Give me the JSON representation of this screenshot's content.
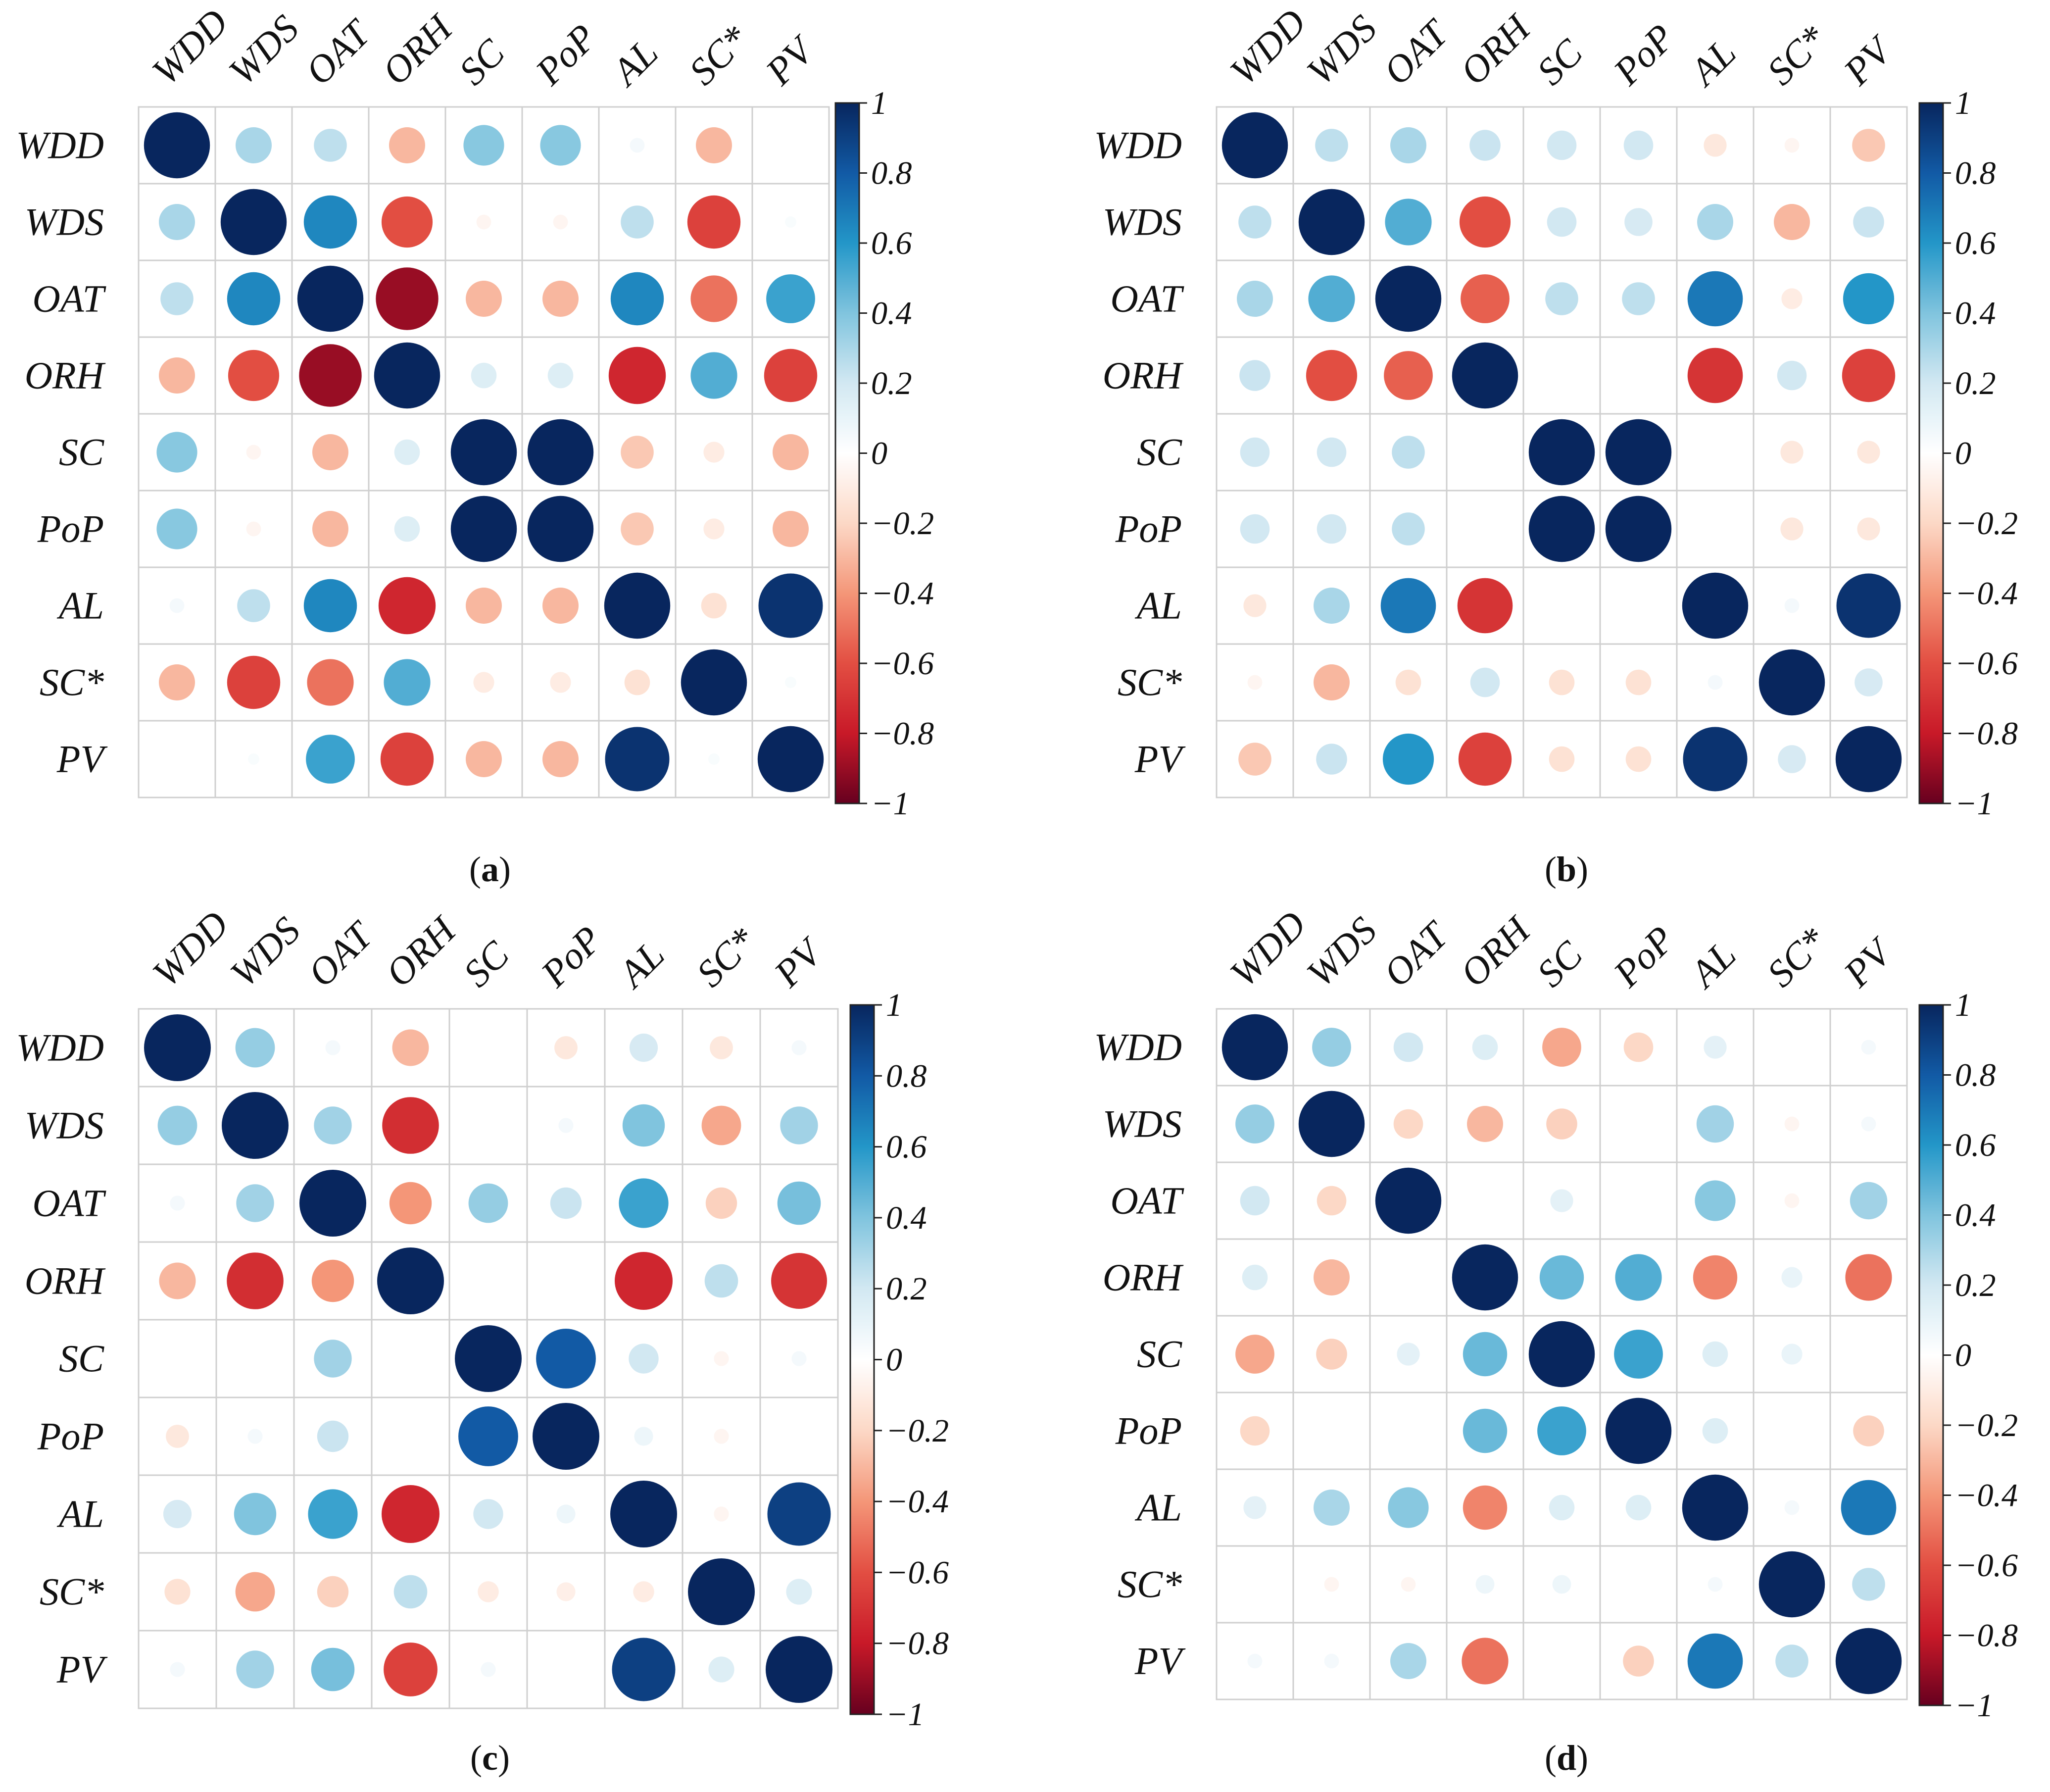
{
  "chart_data": [
    {
      "type": "heatmap",
      "subtype": "circle-correlogram",
      "caption": "(a)",
      "caption_letter": "a",
      "variables": [
        "WDD",
        "WDS",
        "OAT",
        "ORH",
        "SC",
        "PoP",
        "AL",
        "SC*",
        "PV"
      ],
      "colorbar": {
        "min": -1,
        "max": 1,
        "ticks": [
          "1",
          "0.8",
          "0.6",
          "0.4",
          "0.2",
          "0",
          "−0.2",
          "−0.4",
          "−0.6",
          "−0.8",
          "−1"
        ]
      },
      "matrix": [
        [
          1.0,
          0.3,
          0.25,
          -0.3,
          0.38,
          0.38,
          0.05,
          -0.3,
          0.0
        ],
        [
          0.3,
          1.0,
          0.65,
          -0.6,
          -0.05,
          -0.05,
          0.25,
          -0.65,
          0.03
        ],
        [
          0.25,
          0.65,
          1.0,
          -0.9,
          -0.3,
          -0.3,
          0.65,
          -0.5,
          0.55
        ],
        [
          -0.3,
          -0.6,
          -0.9,
          1.0,
          0.15,
          0.15,
          -0.75,
          0.5,
          -0.65
        ],
        [
          0.38,
          -0.05,
          -0.3,
          0.15,
          1.0,
          1.0,
          -0.25,
          -0.1,
          -0.3
        ],
        [
          0.38,
          -0.05,
          -0.3,
          0.15,
          1.0,
          1.0,
          -0.25,
          -0.1,
          -0.3
        ],
        [
          0.05,
          0.25,
          0.65,
          -0.75,
          -0.3,
          -0.3,
          1.0,
          -0.15,
          0.95
        ],
        [
          -0.3,
          -0.65,
          -0.5,
          0.5,
          -0.1,
          -0.1,
          -0.15,
          1.0,
          0.03
        ],
        [
          0.0,
          0.03,
          0.55,
          -0.65,
          -0.3,
          -0.3,
          0.95,
          0.03,
          1.0
        ]
      ]
    },
    {
      "type": "heatmap",
      "subtype": "circle-correlogram",
      "caption": "(b)",
      "caption_letter": "b",
      "variables": [
        "WDD",
        "WDS",
        "OAT",
        "ORH",
        "SC",
        "PoP",
        "AL",
        "SC*",
        "PV"
      ],
      "colorbar": {
        "min": -1,
        "max": 1,
        "ticks": [
          "1",
          "0.8",
          "0.6",
          "0.4",
          "0.2",
          "0",
          "−0.2",
          "−0.4",
          "−0.6",
          "−0.8",
          "−1"
        ]
      },
      "matrix": [
        [
          1.0,
          0.25,
          0.3,
          0.22,
          0.2,
          0.2,
          -0.12,
          -0.05,
          -0.25
        ],
        [
          0.25,
          1.0,
          0.5,
          -0.6,
          0.2,
          0.18,
          0.3,
          -0.3,
          0.22
        ],
        [
          0.3,
          0.5,
          1.0,
          -0.55,
          0.25,
          0.25,
          0.7,
          -0.1,
          0.6
        ],
        [
          0.22,
          -0.6,
          -0.55,
          1.0,
          0.0,
          0.0,
          -0.7,
          0.2,
          -0.65
        ],
        [
          0.2,
          0.2,
          0.25,
          0.0,
          1.0,
          1.0,
          0.0,
          -0.12,
          -0.12
        ],
        [
          0.2,
          0.2,
          0.25,
          0.0,
          1.0,
          1.0,
          0.0,
          -0.12,
          -0.12
        ],
        [
          -0.12,
          0.3,
          0.7,
          -0.7,
          0.0,
          0.0,
          1.0,
          0.05,
          0.95
        ],
        [
          -0.05,
          -0.3,
          -0.15,
          0.2,
          -0.15,
          -0.15,
          0.05,
          1.0,
          0.18
        ],
        [
          -0.25,
          0.22,
          0.6,
          -0.65,
          -0.15,
          -0.15,
          0.95,
          0.18,
          1.0
        ]
      ]
    },
    {
      "type": "heatmap",
      "subtype": "circle-correlogram",
      "caption": "(c)",
      "caption_letter": "c",
      "variables": [
        "WDD",
        "WDS",
        "OAT",
        "ORH",
        "SC",
        "PoP",
        "AL",
        "SC*",
        "PV"
      ],
      "colorbar": {
        "min": -1,
        "max": 1,
        "ticks": [
          "1",
          "0.8",
          "0.6",
          "0.4",
          "0.2",
          "0",
          "−0.2",
          "−0.4",
          "−0.6",
          "−0.8",
          "−1"
        ]
      },
      "matrix": [
        [
          1.0,
          0.35,
          0.05,
          -0.3,
          0.0,
          -0.12,
          0.18,
          -0.12,
          0.05
        ],
        [
          0.35,
          1.0,
          0.32,
          -0.72,
          0.0,
          0.05,
          0.4,
          -0.35,
          0.32
        ],
        [
          0.05,
          0.32,
          1.0,
          -0.4,
          0.35,
          0.22,
          0.55,
          -0.22,
          0.42
        ],
        [
          -0.3,
          -0.72,
          -0.4,
          1.0,
          0.0,
          0.0,
          -0.75,
          0.25,
          -0.7
        ],
        [
          0.0,
          0.0,
          0.32,
          0.0,
          1.0,
          0.8,
          0.2,
          -0.05,
          0.05
        ],
        [
          -0.12,
          0.05,
          0.22,
          0.0,
          0.8,
          1.0,
          0.08,
          -0.05,
          0.0
        ],
        [
          0.18,
          0.4,
          0.55,
          -0.75,
          0.2,
          0.08,
          1.0,
          -0.05,
          0.9
        ],
        [
          -0.15,
          -0.35,
          -0.22,
          0.25,
          -0.1,
          -0.08,
          -0.1,
          1.0,
          0.15
        ],
        [
          0.05,
          0.32,
          0.42,
          -0.65,
          0.05,
          0.0,
          0.9,
          0.15,
          1.0
        ]
      ]
    },
    {
      "type": "heatmap",
      "subtype": "circle-correlogram",
      "caption": "(d)",
      "caption_letter": "d",
      "variables": [
        "WDD",
        "WDS",
        "OAT",
        "ORH",
        "SC",
        "PoP",
        "AL",
        "SC*",
        "PV"
      ],
      "colorbar": {
        "min": -1,
        "max": 1,
        "ticks": [
          "1",
          "0.8",
          "0.6",
          "0.4",
          "0.2",
          "0",
          "−0.2",
          "−0.4",
          "−0.6",
          "−0.8",
          "−1"
        ]
      },
      "matrix": [
        [
          1.0,
          0.35,
          0.2,
          0.15,
          -0.35,
          -0.2,
          0.12,
          0.0,
          0.05
        ],
        [
          0.35,
          1.0,
          -0.2,
          -0.3,
          -0.22,
          0.0,
          0.32,
          -0.05,
          0.05
        ],
        [
          0.2,
          -0.2,
          1.0,
          0.0,
          0.12,
          0.0,
          0.38,
          -0.05,
          0.32
        ],
        [
          0.15,
          -0.3,
          0.0,
          1.0,
          0.45,
          0.5,
          -0.45,
          0.1,
          -0.5
        ],
        [
          -0.35,
          -0.22,
          0.12,
          0.45,
          1.0,
          0.55,
          0.15,
          0.1,
          0.0
        ],
        [
          -0.2,
          0.0,
          0.0,
          0.45,
          0.55,
          1.0,
          0.15,
          0.0,
          -0.22
        ],
        [
          0.12,
          0.3,
          0.38,
          -0.45,
          0.15,
          0.15,
          1.0,
          0.05,
          0.7
        ],
        [
          0.0,
          -0.05,
          -0.05,
          0.08,
          0.08,
          0.0,
          0.05,
          1.0,
          0.25
        ],
        [
          0.05,
          0.05,
          0.3,
          -0.5,
          0.0,
          -0.22,
          0.7,
          0.25,
          1.0
        ]
      ]
    }
  ]
}
